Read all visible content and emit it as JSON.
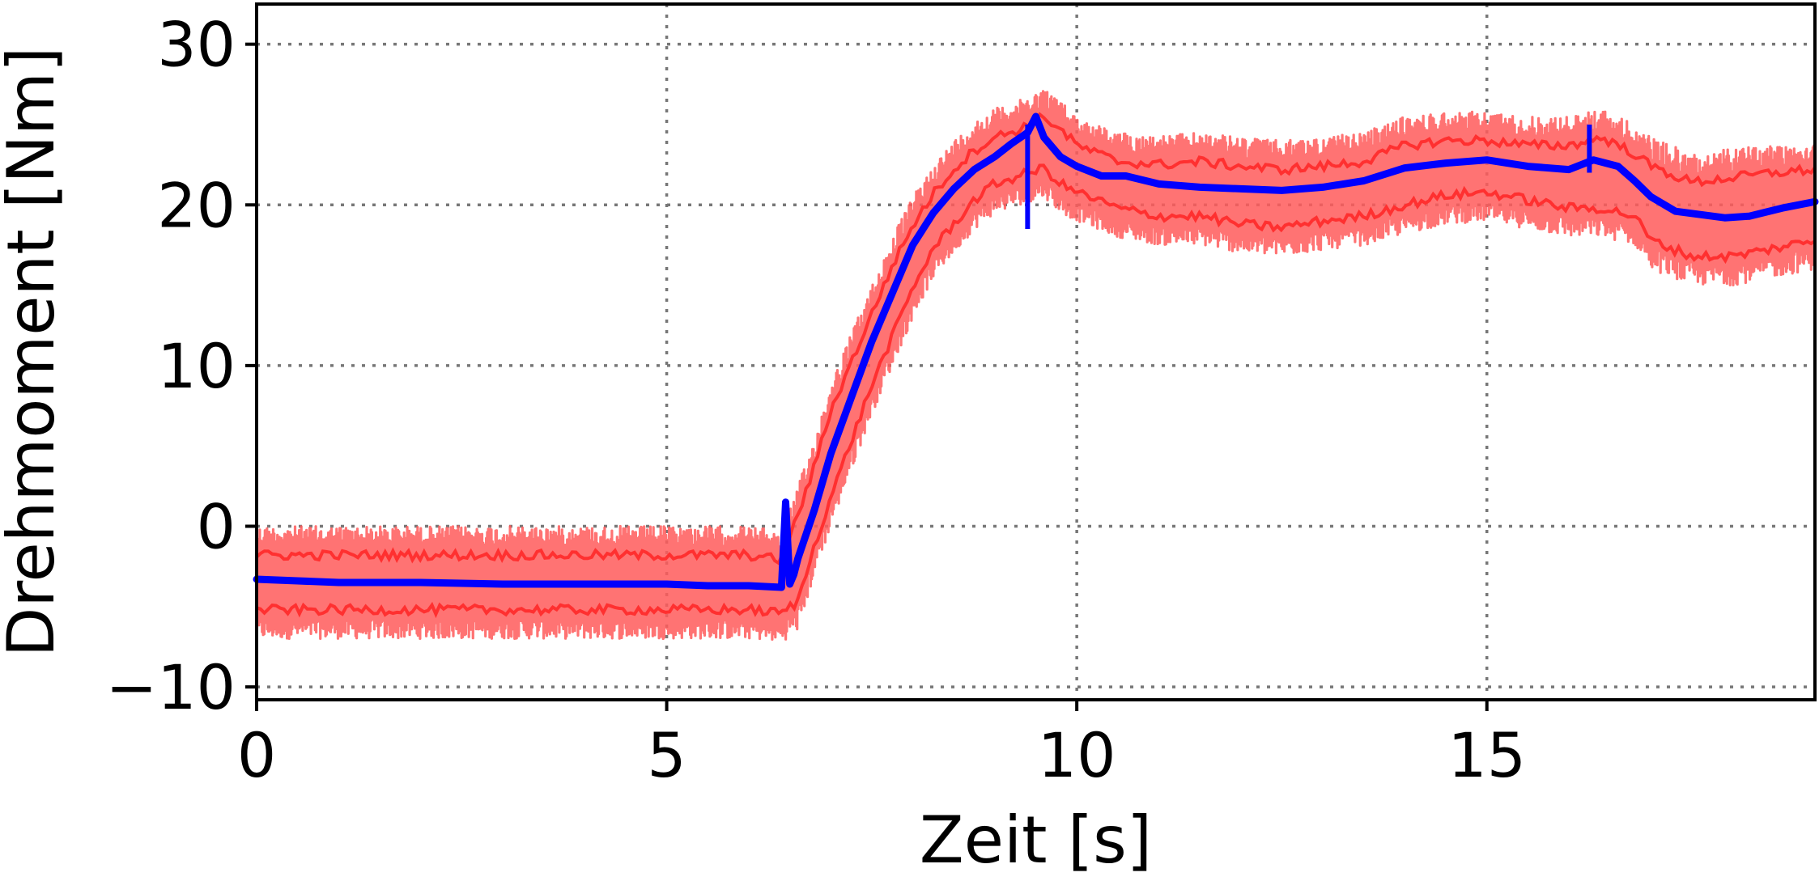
{
  "chart_data": {
    "type": "line",
    "title": "",
    "xlabel": "Zeit [s]",
    "ylabel": "Drehmoment [Nm]",
    "xlim": [
      0,
      19
    ],
    "ylim": [
      -10.8,
      32.5
    ],
    "xticks": [
      0,
      5,
      10,
      15
    ],
    "yticks": [
      -10,
      0,
      10,
      20,
      30
    ],
    "xtick_labels": [
      "0",
      "5",
      "10",
      "15"
    ],
    "ytick_labels": [
      "−10",
      "0",
      "10",
      "20",
      "30"
    ],
    "grid": true,
    "legend": "none",
    "colors": {
      "band": "#ff5a5a",
      "band_line": "#ff3030",
      "mean": "#0000ff",
      "grid": "#777777",
      "axis": "#000000"
    },
    "series": [
      {
        "name": "mean",
        "x": [
          0,
          0.5,
          1,
          2,
          3,
          4,
          5,
          5.5,
          6,
          6.4,
          6.45,
          6.5,
          6.55,
          6.6,
          6.8,
          7,
          7.25,
          7.5,
          7.75,
          8,
          8.25,
          8.5,
          8.75,
          9,
          9.2,
          9.4,
          9.5,
          9.6,
          9.8,
          10,
          10.3,
          10.6,
          11,
          11.5,
          12,
          12.5,
          13,
          13.5,
          14,
          14.5,
          15,
          15.5,
          16,
          16.3,
          16.6,
          16.8,
          17,
          17.3,
          17.6,
          17.9,
          18.2,
          18.6,
          19
        ],
        "y": [
          -3.3,
          -3.4,
          -3.5,
          -3.5,
          -3.6,
          -3.6,
          -3.6,
          -3.7,
          -3.7,
          -3.8,
          1.5,
          -3.6,
          -3.0,
          -2.0,
          1.0,
          4.5,
          8.0,
          11.5,
          14.5,
          17.5,
          19.5,
          21.0,
          22.2,
          23.0,
          23.8,
          24.5,
          25.5,
          24.2,
          23.0,
          22.4,
          21.8,
          21.8,
          21.3,
          21.1,
          21.0,
          20.9,
          21.1,
          21.5,
          22.3,
          22.6,
          22.8,
          22.4,
          22.2,
          22.8,
          22.4,
          21.5,
          20.5,
          19.6,
          19.4,
          19.2,
          19.3,
          19.8,
          20.2
        ]
      },
      {
        "name": "band_upper",
        "x": [
          0,
          0.5,
          1,
          2,
          3,
          4,
          5,
          5.5,
          6,
          6.4,
          6.6,
          6.8,
          7,
          7.25,
          7.5,
          7.75,
          8,
          8.25,
          8.5,
          8.75,
          9,
          9.3,
          9.6,
          9.8,
          10,
          10.5,
          11,
          11.5,
          12,
          12.5,
          13,
          13.5,
          14,
          14.5,
          15,
          15.5,
          16,
          16.4,
          16.8,
          17,
          17.5,
          18,
          18.5,
          19
        ],
        "y": [
          0.0,
          0.0,
          0.0,
          0.0,
          0.0,
          0.0,
          0.0,
          0.0,
          0.0,
          -0.3,
          2.5,
          5.5,
          9.0,
          12.0,
          15.0,
          18.0,
          20.5,
          22.5,
          24.0,
          25.2,
          26.0,
          26.5,
          27.3,
          26.5,
          25.5,
          24.5,
          24.3,
          24.5,
          24.2,
          24.0,
          24.2,
          24.5,
          25.5,
          25.8,
          25.8,
          25.5,
          25.5,
          26.0,
          25.0,
          24.2,
          23.2,
          23.5,
          23.8,
          24.0
        ]
      },
      {
        "name": "band_lower",
        "x": [
          0,
          0.5,
          1,
          2,
          3,
          4,
          5,
          5.5,
          6,
          6.4,
          6.6,
          6.8,
          7,
          7.25,
          7.5,
          7.75,
          8,
          8.25,
          8.5,
          8.75,
          9,
          9.3,
          9.6,
          9.8,
          10,
          10.5,
          11,
          11.5,
          12,
          12.5,
          13,
          13.5,
          14,
          14.5,
          15,
          15.5,
          16,
          16.4,
          16.8,
          17,
          17.5,
          18,
          18.5,
          19
        ],
        "y": [
          -7.0,
          -7.0,
          -7.0,
          -7.0,
          -7.0,
          -7.0,
          -7.0,
          -7.0,
          -7.0,
          -7.2,
          -6.5,
          -3.0,
          0.0,
          3.5,
          7.0,
          10.0,
          13.0,
          15.5,
          17.0,
          18.5,
          19.5,
          20.0,
          20.5,
          19.5,
          19.0,
          18.0,
          17.5,
          17.5,
          17.0,
          16.8,
          17.2,
          17.5,
          18.2,
          18.8,
          19.0,
          18.5,
          18.0,
          18.0,
          17.5,
          16.0,
          15.0,
          15.0,
          15.5,
          16.0
        ]
      }
    ]
  }
}
